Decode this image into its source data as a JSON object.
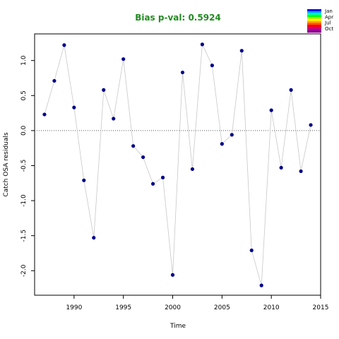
{
  "chart_data": {
    "type": "scatter",
    "title": "Bias p-val: 0.5924",
    "title_color": "#228B22",
    "xlabel": "Time",
    "ylabel": "Catch OSA residuals",
    "xlim": [
      1986,
      2015
    ],
    "ylim": [
      -2.35,
      1.38
    ],
    "x_ticks": [
      1990,
      1995,
      2000,
      2005,
      2010,
      2015
    ],
    "y_ticks": [
      -2.0,
      -1.5,
      -1.0,
      -0.5,
      0.0,
      0.5,
      1.0
    ],
    "y_tick_labels": [
      "-2.0",
      "-1.5",
      "-1.0",
      "-0.5",
      "0.0",
      "0.5",
      "1.0"
    ],
    "zero_line": 0,
    "point_color": "#00008B",
    "line_color": "#c8c8c8",
    "series": [
      {
        "x": [
          1987,
          1988,
          1989,
          1990,
          1991,
          1992,
          1993,
          1994,
          1995,
          1996,
          1997,
          1998,
          1999,
          2000,
          2001,
          2002,
          2003,
          2004,
          2005,
          2006,
          2007,
          2008,
          2009,
          2010,
          2011,
          2012,
          2013,
          2014
        ],
        "y": [
          0.23,
          0.71,
          1.22,
          0.33,
          -0.71,
          -1.53,
          0.58,
          0.17,
          1.02,
          -0.22,
          -0.38,
          -0.76,
          -0.67,
          -2.06,
          0.83,
          -0.55,
          1.23,
          0.93,
          -0.19,
          -0.06,
          1.14,
          -1.71,
          -2.21,
          0.29,
          -0.53,
          0.58,
          -0.58,
          0.08
        ]
      }
    ],
    "legend": {
      "position": "top-right",
      "labels": [
        "Jan",
        "Apr",
        "Jul",
        "Oct"
      ],
      "colors": [
        "#0000ff",
        "#00aaff",
        "#00ffaa",
        "#00ff00",
        "#aaff00",
        "#ffff00",
        "#ffaa00",
        "#ff5500",
        "#ff0000",
        "#dd0066",
        "#aa00aa",
        "#800080"
      ]
    }
  }
}
